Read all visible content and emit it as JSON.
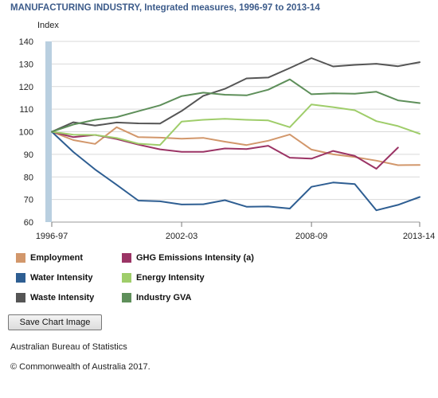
{
  "chart_data": {
    "type": "line",
    "title": "MANUFACTURING INDUSTRY, Integrated measures, 1996-97 to 2013-14",
    "ylabel": "Index",
    "xlabel": "",
    "ylim": [
      60,
      140
    ],
    "yticks": [
      60,
      70,
      80,
      90,
      100,
      110,
      120,
      130,
      140
    ],
    "x": [
      "1996-97",
      "1997-98",
      "1998-99",
      "1999-00",
      "2000-01",
      "2001-02",
      "2002-03",
      "2003-04",
      "2004-05",
      "2005-06",
      "2006-07",
      "2007-08",
      "2008-09",
      "2009-10",
      "2010-11",
      "2011-12",
      "2012-13",
      "2013-14"
    ],
    "xtick_labels": [
      "1996-97",
      "2002-03",
      "2008-09",
      "2013-14"
    ],
    "grid": true,
    "legend_position": "bottom",
    "series": [
      {
        "name": "Employment",
        "color": "#d2976b",
        "values": [
          100,
          96.3,
          94.6,
          102,
          97.6,
          97.4,
          96.9,
          97.3,
          95.6,
          94.1,
          96,
          98.8,
          92.1,
          90,
          88.8,
          87.2,
          85.2,
          85.3
        ]
      },
      {
        "name": "GHG Emissions Intensity (a)",
        "color": "#9b3465",
        "values": [
          100,
          97.6,
          98.6,
          96.8,
          94.3,
          92.2,
          91.1,
          91.1,
          92.6,
          92.3,
          93.8,
          88.5,
          88.1,
          91.5,
          89.3,
          83.6,
          93,
          null
        ]
      },
      {
        "name": "Water Intensity",
        "color": "#2e5e92",
        "values": [
          100,
          91,
          83.3,
          76.5,
          69.5,
          69.2,
          67.8,
          67.9,
          69.7,
          66.8,
          66.9,
          66,
          75.6,
          77.5,
          76.8,
          65.2,
          67.6,
          71.1
        ]
      },
      {
        "name": "Energy Intensity",
        "color": "#9fcd6a",
        "values": [
          100,
          98.7,
          98.6,
          97.2,
          94.7,
          94.1,
          104.5,
          105.3,
          105.7,
          105.3,
          105,
          102,
          112.1,
          110.9,
          109.5,
          104.7,
          102.5,
          99.1
        ]
      },
      {
        "name": "Waste Intensity",
        "color": "#555555",
        "values": [
          100,
          104.2,
          102.7,
          104.1,
          103.7,
          103.6,
          109.2,
          115.9,
          119,
          123.6,
          124,
          128.2,
          132.6,
          128.9,
          129.6,
          130.1,
          129,
          130.8
        ]
      },
      {
        "name": "Industry GVA",
        "color": "#5e8f5a",
        "values": [
          100,
          103.2,
          105.3,
          106.5,
          109.1,
          111.7,
          115.8,
          117.3,
          116.4,
          116.1,
          118.6,
          123.2,
          116.6,
          117,
          116.8,
          117.7,
          113.9,
          112.7
        ]
      }
    ]
  },
  "ui": {
    "save_label": "Save Chart Image",
    "source": "Australian Bureau of Statistics",
    "copyright": "© Commonwealth of Australia 2017."
  }
}
